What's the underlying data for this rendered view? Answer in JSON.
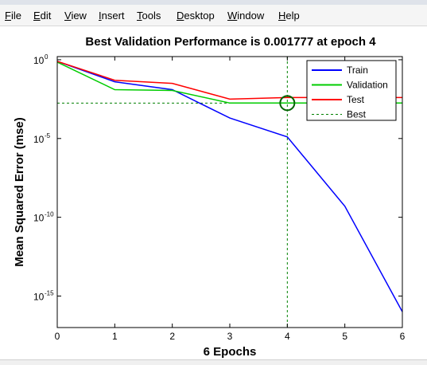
{
  "menu": {
    "items": [
      {
        "label": "File",
        "key": "F"
      },
      {
        "label": "Edit",
        "key": "E"
      },
      {
        "label": "View",
        "key": "V"
      },
      {
        "label": "Insert",
        "key": "I"
      },
      {
        "label": "Tools",
        "key": "T"
      },
      {
        "label": "Desktop",
        "key": "D"
      },
      {
        "label": "Window",
        "key": "W"
      },
      {
        "label": "Help",
        "key": "H"
      }
    ]
  },
  "colors": {
    "train": "#0000ff",
    "validation": "#00cc00",
    "test": "#ff0000",
    "best": "#008000",
    "best_marker": "#006400"
  },
  "chart_data": {
    "type": "line",
    "title": "Best Validation Performance is 0.001777 at epoch 4",
    "xlabel": "6 Epochs",
    "ylabel": "Mean Squared Error  (mse)",
    "xlim": [
      0,
      6
    ],
    "ylim_log10": [
      -17,
      0.2
    ],
    "yscale": "log",
    "xticks": [
      "0",
      "1",
      "2",
      "3",
      "4",
      "5",
      "6"
    ],
    "yticks": [
      {
        "base": "10",
        "exp": "0",
        "log10": 0
      },
      {
        "base": "10",
        "exp": "-5",
        "log10": -5
      },
      {
        "base": "10",
        "exp": "-10",
        "log10": -10
      },
      {
        "base": "10",
        "exp": "-15",
        "log10": -15
      }
    ],
    "x": [
      0,
      1,
      2,
      3,
      4,
      5,
      6
    ],
    "series": [
      {
        "name": "Train",
        "log10": [
          -0.1,
          -1.4,
          -1.9,
          -3.7,
          -4.9,
          -9.3,
          -16.0
        ]
      },
      {
        "name": "Validation",
        "log10": [
          -0.15,
          -1.9,
          -1.95,
          -2.75,
          -2.75,
          -2.75,
          -2.75
        ]
      },
      {
        "name": "Test",
        "log10": [
          -0.1,
          -1.3,
          -1.5,
          -2.5,
          -2.4,
          -2.4,
          -2.4
        ]
      }
    ],
    "best": {
      "name": "Best",
      "x": 4,
      "log10": -2.75
    },
    "legend": {
      "position": "top-right",
      "entries": [
        "Train",
        "Validation",
        "Test",
        "Best"
      ]
    }
  }
}
